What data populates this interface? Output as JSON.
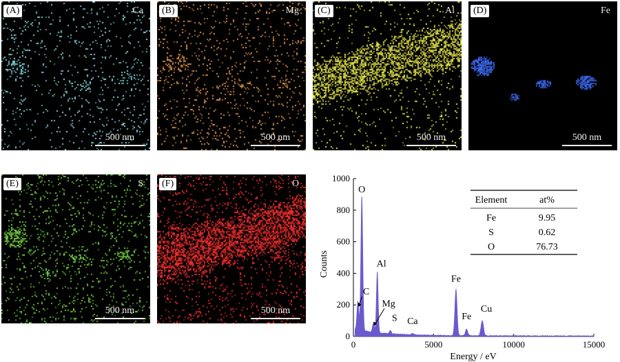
{
  "maps": [
    {
      "label": "(A)",
      "element": "Ca",
      "color": "#8fe8ee",
      "scale": "500 nm"
    },
    {
      "label": "(B)",
      "element": "Mg",
      "color": "#f0a050",
      "scale": "500 nm"
    },
    {
      "label": "(C)",
      "element": "Al",
      "color": "#f0f050",
      "scale": "500 nm"
    },
    {
      "label": "(D)",
      "element": "Fe",
      "color": "#3f6fff",
      "scale": "500 nm"
    },
    {
      "label": "(E)",
      "element": "S",
      "color": "#7ee04a",
      "scale": "500 nm"
    },
    {
      "label": "(F)",
      "element": "O",
      "color": "#ff3030",
      "scale": "500 nm"
    }
  ],
  "chart_data": {
    "type": "line",
    "xlabel": "Energy / eV",
    "ylabel": "Counts",
    "xlim": [
      0,
      15000
    ],
    "ylim": [
      0,
      1000
    ],
    "xticks": [
      "0",
      "5000",
      "10000",
      "15000"
    ],
    "yticks": [
      "0",
      "200",
      "400",
      "600",
      "800",
      "1000"
    ],
    "series_color": "#6a5acd",
    "peaks": [
      {
        "label": "C",
        "x": 280,
        "y": 180
      },
      {
        "label": "O",
        "x": 525,
        "y": 860
      },
      {
        "label": "Mg",
        "x": 1250,
        "y": 60
      },
      {
        "label": "Al",
        "x": 1490,
        "y": 390
      },
      {
        "label": "S",
        "x": 2310,
        "y": 20
      },
      {
        "label": "Ca",
        "x": 3690,
        "y": 8
      },
      {
        "label": "Fe",
        "x": 6400,
        "y": 295
      },
      {
        "label": "Fe",
        "x": 7060,
        "y": 40
      },
      {
        "label": "Cu",
        "x": 8040,
        "y": 95
      }
    ],
    "table": {
      "headers": [
        "Element",
        "at%"
      ],
      "rows": [
        [
          "Fe",
          "9.95"
        ],
        [
          "S",
          "0.62"
        ],
        [
          "O",
          "76.73"
        ]
      ]
    }
  }
}
